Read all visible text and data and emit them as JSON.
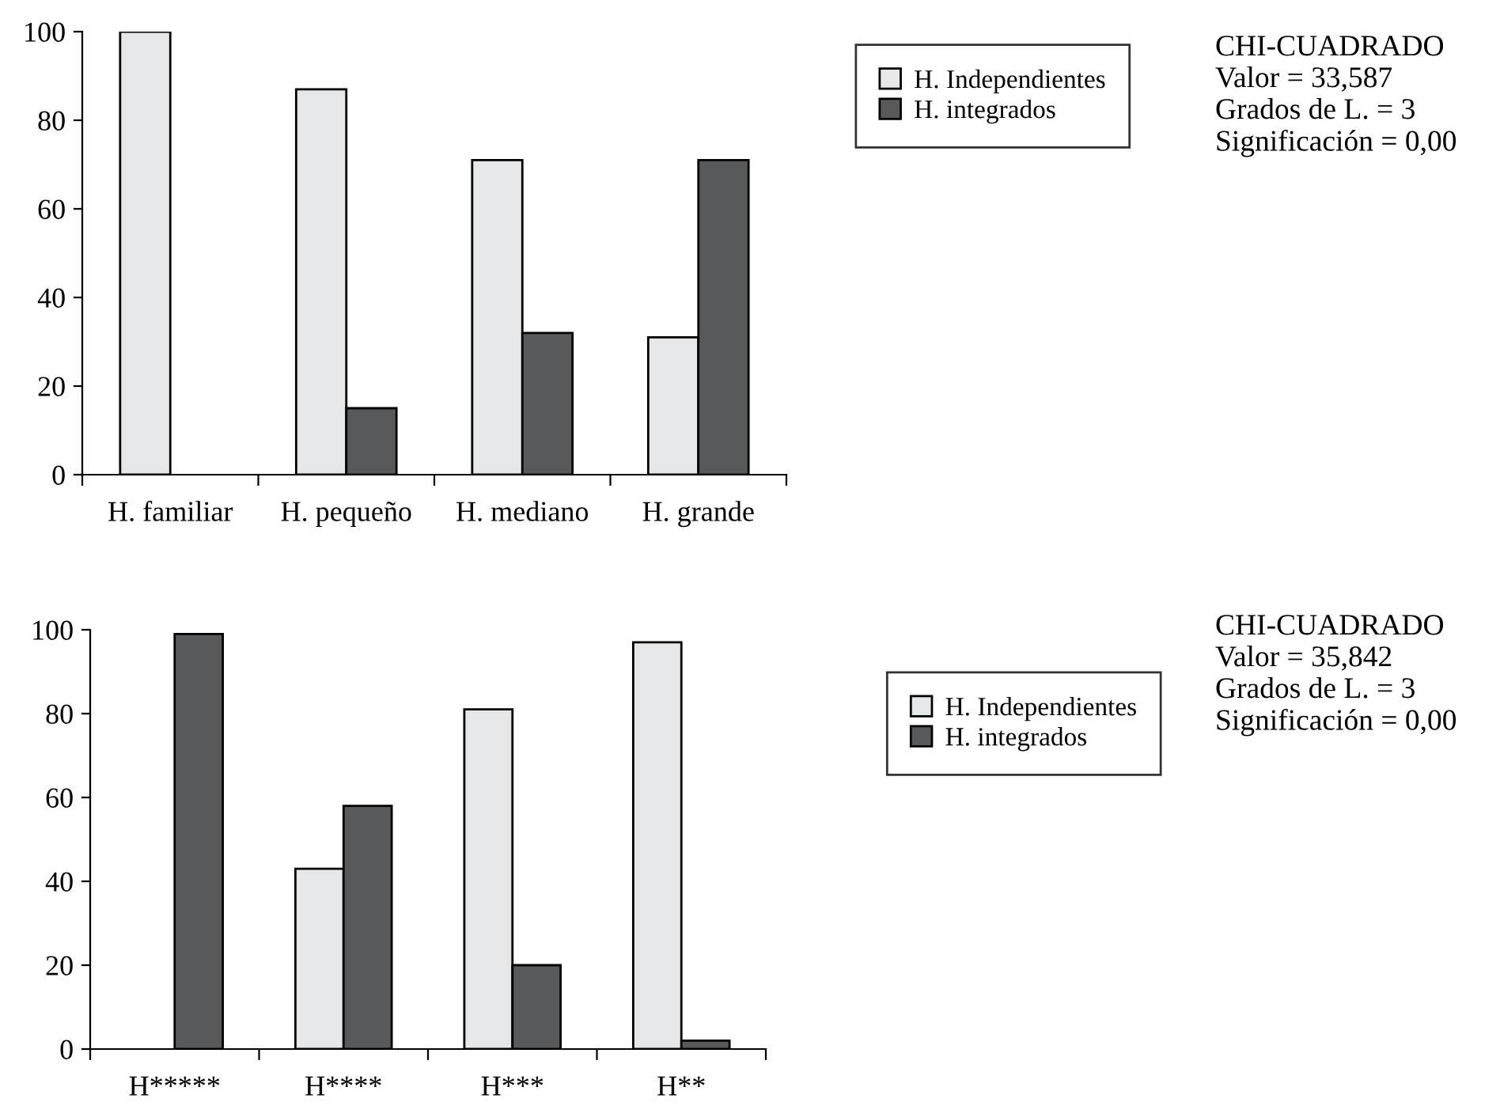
{
  "chart_data": [
    {
      "type": "bar",
      "categories": [
        "H. familiar",
        "H. pequeño",
        "H. mediano",
        "H. grande"
      ],
      "series": [
        {
          "name": "H. Independientes",
          "color": "#e6e7e8",
          "values": [
            100,
            87,
            71,
            31
          ]
        },
        {
          "name": "H. integrados",
          "color": "#58595b",
          "values": [
            0,
            15,
            32,
            71
          ]
        }
      ],
      "ylim": [
        0,
        100
      ],
      "yticks": [
        0,
        20,
        40,
        60,
        80,
        100
      ],
      "legend": "top right",
      "annotations": [
        "CHI-CUADRADO",
        "Valor = 33,587",
        "Grados de L. = 3",
        "Significación = 0,00"
      ]
    },
    {
      "type": "bar",
      "categories": [
        "H*****",
        "H****",
        "H***",
        "H**"
      ],
      "series": [
        {
          "name": "H. Independientes",
          "color": "#e6e7e8",
          "values": [
            0,
            43,
            81,
            97
          ]
        },
        {
          "name": "H. integrados",
          "color": "#58595b",
          "values": [
            99,
            58,
            20,
            2
          ]
        }
      ],
      "ylim": [
        0,
        100
      ],
      "yticks": [
        0,
        20,
        40,
        60,
        80,
        100
      ],
      "legend": "top right",
      "annotations": [
        "CHI-CUADRADO",
        "Valor = 35,842",
        "Grados de L. = 3",
        "Significación = 0,00"
      ]
    }
  ]
}
